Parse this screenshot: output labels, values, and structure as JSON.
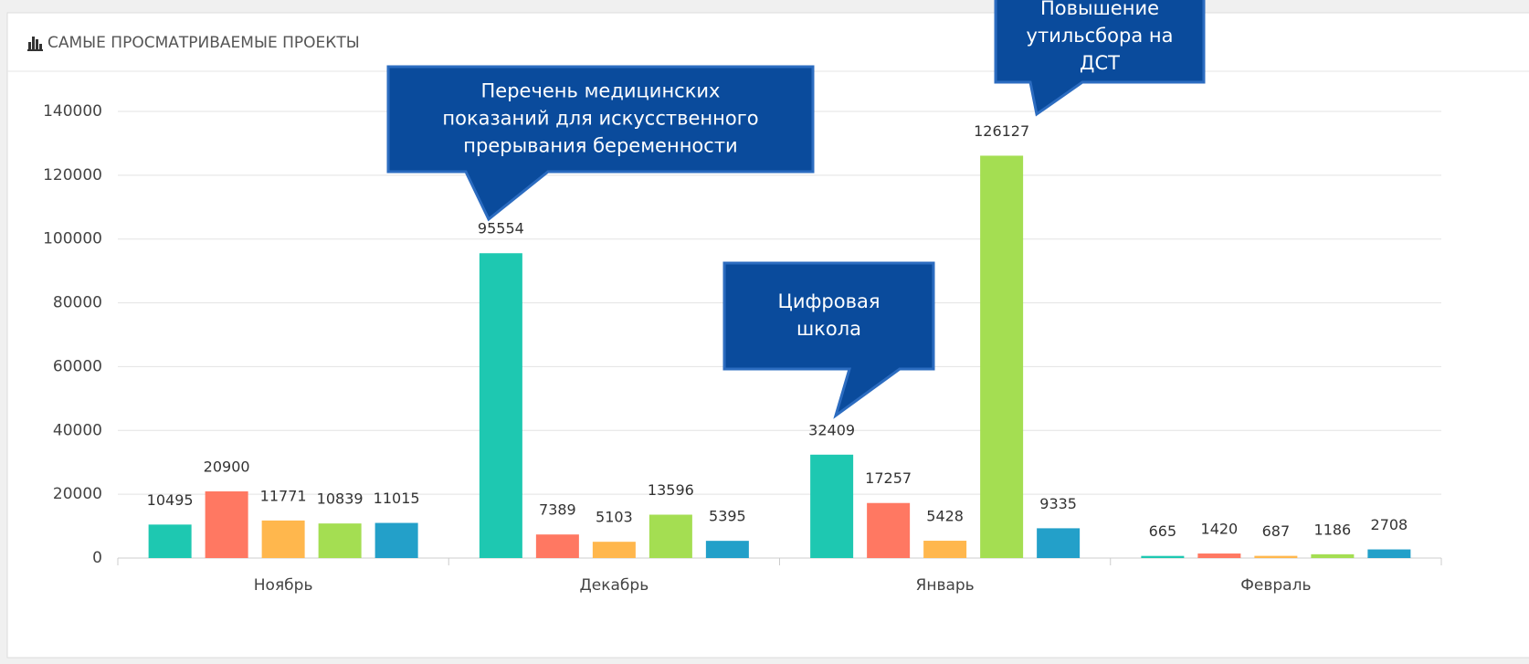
{
  "chart_data": {
    "type": "bar",
    "title": "САМЫЕ ПРОСМАТРИВАЕМЫЕ ПРОЕКТЫ",
    "categories": [
      "Ноябрь",
      "Декабрь",
      "Январь",
      "Февраль"
    ],
    "series": [
      {
        "color": "#1ec8b1",
        "values": [
          10495,
          95554,
          32409,
          665
        ]
      },
      {
        "color": "#ff7862",
        "values": [
          20900,
          7389,
          17257,
          1420
        ]
      },
      {
        "color": "#ffb74d",
        "values": [
          11771,
          5103,
          5428,
          687
        ]
      },
      {
        "color": "#a4de52",
        "values": [
          10839,
          13596,
          126127,
          1186
        ]
      },
      {
        "color": "#23a0c9",
        "values": [
          11015,
          5395,
          9335,
          2708
        ]
      }
    ],
    "ylim": [
      0,
      140000
    ],
    "yticks": [
      0,
      20000,
      40000,
      60000,
      80000,
      100000,
      120000,
      140000
    ],
    "grid": true,
    "annotations": [
      {
        "lines": [
          "Перечень медицинских",
          "показаний для искусственного",
          "прерывания беременности"
        ]
      },
      {
        "lines": [
          "Цифровая",
          "школа"
        ]
      },
      {
        "lines": [
          "Повышение",
          "утильсбора на",
          "ДСТ"
        ]
      }
    ]
  }
}
